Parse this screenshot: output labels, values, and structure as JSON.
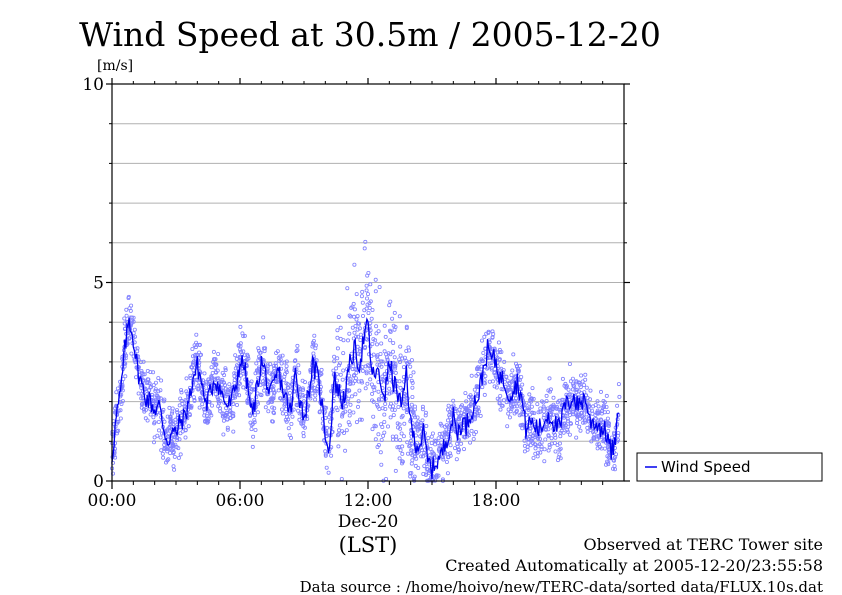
{
  "chart_data": {
    "type": "line",
    "title": "Wind Speed at 30.5m / 2005-12-20",
    "ylabel": "[m/s]",
    "xlabel": "(LST)",
    "date_label": "Dec-20",
    "ylim": [
      0,
      10
    ],
    "xlim_hours": [
      0,
      24
    ],
    "x_unit": "hour of day (LST)",
    "x_ticks": [
      {
        "hour": 0,
        "label": "00:00"
      },
      {
        "hour": 6,
        "label": "06:00"
      },
      {
        "hour": 12,
        "label": "12:00"
      },
      {
        "hour": 18,
        "label": "18:00"
      }
    ],
    "y_ticks": [
      {
        "value": 0,
        "label": "0"
      },
      {
        "value": 5,
        "label": "5"
      },
      {
        "value": 10,
        "label": "10"
      }
    ],
    "gridlines": [
      1,
      2,
      3,
      4,
      5,
      6,
      7,
      8,
      9
    ],
    "grid": true,
    "legend": {
      "position": "right",
      "entries": [
        "Wind Speed"
      ]
    },
    "series": [
      {
        "name": "Wind Speed",
        "color": "#0000ee",
        "scatter_color": "#8080ff",
        "x_hours": [
          0.0,
          0.2,
          0.4,
          0.6,
          0.8,
          1.0,
          1.2,
          1.4,
          1.6,
          1.8,
          2.0,
          2.2,
          2.4,
          2.6,
          2.8,
          3.0,
          3.2,
          3.4,
          3.6,
          3.8,
          4.0,
          4.2,
          4.4,
          4.6,
          4.8,
          5.0,
          5.2,
          5.4,
          5.6,
          5.8,
          6.0,
          6.2,
          6.4,
          6.6,
          6.8,
          7.0,
          7.2,
          7.4,
          7.6,
          7.8,
          8.0,
          8.2,
          8.4,
          8.6,
          8.8,
          9.0,
          9.2,
          9.4,
          9.6,
          9.8,
          10.0,
          10.2,
          10.4,
          10.6,
          10.8,
          11.0,
          11.2,
          11.4,
          11.6,
          11.8,
          12.0,
          12.2,
          12.4,
          12.6,
          12.8,
          13.0,
          13.2,
          13.4,
          13.6,
          13.8,
          14.0,
          14.2,
          14.4,
          14.6,
          14.8,
          15.0,
          15.2,
          15.4,
          15.6,
          15.8,
          16.0,
          16.2,
          16.4,
          16.6,
          16.8,
          17.0,
          17.2,
          17.4,
          17.6,
          17.8,
          18.0,
          18.2,
          18.4,
          18.6,
          18.8,
          19.0,
          19.2,
          19.4,
          19.6,
          19.8,
          20.0,
          20.2,
          20.4,
          20.6,
          20.8,
          21.0,
          21.2,
          21.4,
          21.6,
          21.8,
          22.0,
          22.2,
          22.4,
          22.6,
          22.8,
          23.0,
          23.2,
          23.4,
          23.6,
          23.8
        ],
        "values": [
          0.6,
          1.6,
          2.2,
          3.3,
          4.1,
          3.6,
          2.8,
          2.4,
          2.1,
          2.0,
          1.8,
          1.9,
          1.4,
          1.0,
          1.2,
          1.2,
          1.5,
          1.6,
          2.0,
          2.6,
          2.9,
          2.5,
          1.9,
          2.2,
          2.6,
          2.4,
          2.1,
          1.9,
          2.0,
          2.4,
          3.0,
          2.9,
          2.2,
          1.6,
          2.4,
          3.0,
          2.7,
          2.1,
          2.4,
          2.8,
          2.3,
          2.0,
          1.7,
          2.8,
          2.1,
          1.6,
          2.2,
          2.9,
          2.7,
          2.1,
          1.2,
          0.8,
          2.6,
          2.3,
          2.0,
          2.4,
          3.1,
          3.3,
          2.9,
          3.6,
          3.9,
          2.6,
          2.8,
          2.4,
          2.2,
          3.0,
          2.5,
          2.2,
          1.8,
          2.8,
          1.4,
          1.0,
          0.9,
          1.2,
          0.5,
          0.3,
          0.5,
          0.6,
          0.9,
          1.3,
          1.6,
          1.2,
          1.5,
          1.4,
          1.7,
          2.0,
          2.2,
          2.8,
          3.3,
          3.1,
          3.0,
          2.6,
          2.5,
          2.2,
          2.3,
          2.5,
          2.1,
          1.3,
          1.5,
          1.4,
          1.3,
          1.4,
          1.7,
          1.6,
          1.4,
          1.3,
          1.9,
          1.9,
          2.2,
          1.9,
          2.0,
          2.1,
          1.5,
          1.5,
          1.4,
          1.3,
          1.2,
          0.7,
          1.0,
          1.9
        ]
      }
    ]
  },
  "footer": {
    "line1": "Observed at TERC Tower site",
    "line2": "Created Automatically at 2005-12-20/23:55:58",
    "line3": "Data source : /home/hoivo/new/TERC-data/sorted  data/FLUX.10s.dat"
  }
}
